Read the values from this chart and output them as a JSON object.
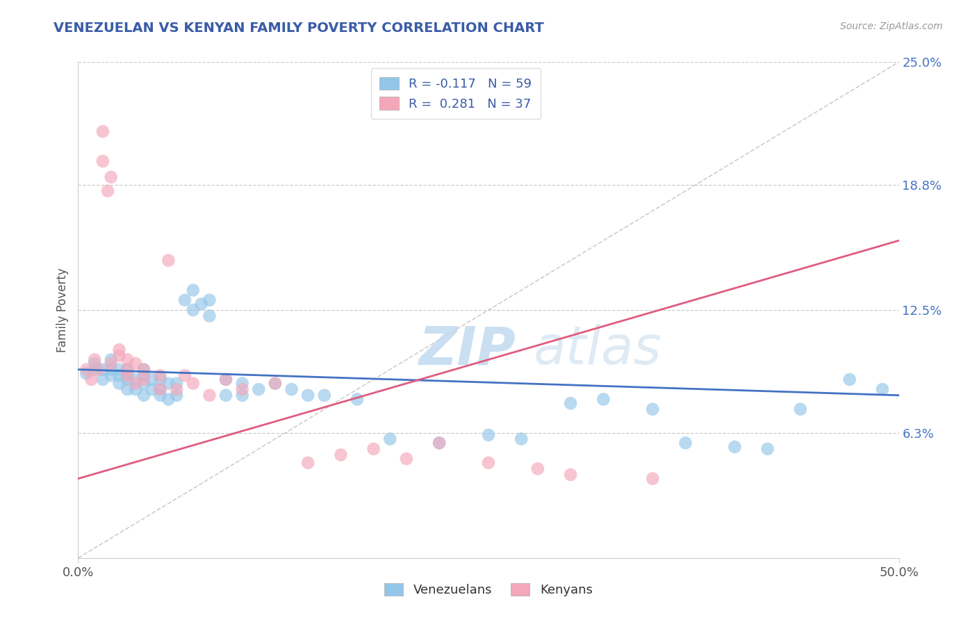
{
  "title": "VENEZUELAN VS KENYAN FAMILY POVERTY CORRELATION CHART",
  "source": "Source: ZipAtlas.com",
  "ylabel": "Family Poverty",
  "xlim": [
    0.0,
    0.5
  ],
  "ylim": [
    0.0,
    0.25
  ],
  "xtick_labels": [
    "0.0%",
    "50.0%"
  ],
  "ytick_labels_right": [
    "6.3%",
    "12.5%",
    "18.8%",
    "25.0%"
  ],
  "ytick_values_right": [
    0.063,
    0.125,
    0.188,
    0.25
  ],
  "legend_label1": "R = -0.117   N = 59",
  "legend_label2": "R =  0.281   N = 37",
  "color_venezuelan": "#93C6E8",
  "color_kenyan": "#F4A7B9",
  "color_line_ven": "#4472C4",
  "color_line_ken": "#E05B7F",
  "color_diag": "#C8C8C8",
  "venezuelan_x": [
    0.005,
    0.01,
    0.01,
    0.015,
    0.015,
    0.02,
    0.02,
    0.02,
    0.025,
    0.025,
    0.025,
    0.03,
    0.03,
    0.03,
    0.03,
    0.035,
    0.035,
    0.04,
    0.04,
    0.04,
    0.04,
    0.045,
    0.045,
    0.05,
    0.05,
    0.05,
    0.055,
    0.055,
    0.06,
    0.06,
    0.065,
    0.07,
    0.07,
    0.075,
    0.08,
    0.08,
    0.09,
    0.09,
    0.1,
    0.1,
    0.11,
    0.12,
    0.13,
    0.14,
    0.15,
    0.17,
    0.19,
    0.22,
    0.25,
    0.27,
    0.3,
    0.32,
    0.35,
    0.37,
    0.4,
    0.42,
    0.44,
    0.47,
    0.49
  ],
  "venezuelan_y": [
    0.093,
    0.095,
    0.098,
    0.09,
    0.095,
    0.092,
    0.095,
    0.1,
    0.088,
    0.092,
    0.095,
    0.085,
    0.09,
    0.092,
    0.095,
    0.085,
    0.09,
    0.082,
    0.088,
    0.092,
    0.095,
    0.085,
    0.09,
    0.082,
    0.085,
    0.09,
    0.08,
    0.088,
    0.082,
    0.088,
    0.13,
    0.125,
    0.135,
    0.128,
    0.122,
    0.13,
    0.082,
    0.09,
    0.082,
    0.088,
    0.085,
    0.088,
    0.085,
    0.082,
    0.082,
    0.08,
    0.06,
    0.058,
    0.062,
    0.06,
    0.078,
    0.08,
    0.075,
    0.058,
    0.056,
    0.055,
    0.075,
    0.09,
    0.085
  ],
  "kenyan_x": [
    0.005,
    0.008,
    0.01,
    0.012,
    0.015,
    0.015,
    0.018,
    0.02,
    0.02,
    0.025,
    0.025,
    0.03,
    0.03,
    0.03,
    0.035,
    0.035,
    0.04,
    0.04,
    0.05,
    0.05,
    0.055,
    0.06,
    0.065,
    0.07,
    0.08,
    0.09,
    0.1,
    0.12,
    0.14,
    0.16,
    0.18,
    0.2,
    0.22,
    0.25,
    0.28,
    0.3,
    0.35
  ],
  "kenyan_y": [
    0.095,
    0.09,
    0.1,
    0.095,
    0.2,
    0.215,
    0.185,
    0.192,
    0.098,
    0.102,
    0.105,
    0.1,
    0.092,
    0.095,
    0.088,
    0.098,
    0.09,
    0.095,
    0.085,
    0.092,
    0.15,
    0.085,
    0.092,
    0.088,
    0.082,
    0.09,
    0.085,
    0.088,
    0.048,
    0.052,
    0.055,
    0.05,
    0.058,
    0.048,
    0.045,
    0.042,
    0.04
  ],
  "ven_line_x0": 0.0,
  "ven_line_x1": 0.5,
  "ven_line_y0": 0.095,
  "ven_line_y1": 0.082,
  "ken_line_x0": 0.0,
  "ken_line_x1": 0.5,
  "ken_line_y0": 0.04,
  "ken_line_y1": 0.16
}
